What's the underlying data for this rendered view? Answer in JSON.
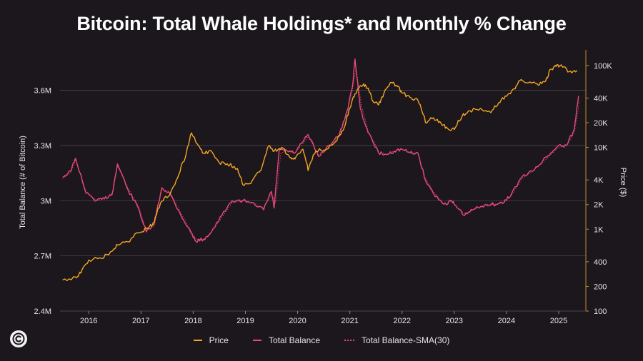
{
  "colors": {
    "background": "#1b171c",
    "price": "#f5a623",
    "balance": "#e8497a",
    "sma": "#e8497a",
    "grid": "#4a444b",
    "right_axis": "#c98a2a",
    "text": "#ffffff",
    "tick_text": "#e6e3e6"
  },
  "logo": {
    "icon": "coin-c-icon"
  },
  "chart_data": {
    "type": "line",
    "title": "Bitcoin: Total Whale Holdings* and Monthly % Change",
    "ylabel": "Total Balance (# of Bitcoin)",
    "y2label": "Price ($)",
    "xlabel": "",
    "xlim": [
      2015.45,
      2025.52
    ],
    "ylim": [
      2400000,
      3800000
    ],
    "y2lim": [
      100,
      140000
    ],
    "y2scale": "log",
    "x_ticks": [
      {
        "value": 2016,
        "label": "2016"
      },
      {
        "value": 2017,
        "label": "2017"
      },
      {
        "value": 2018,
        "label": "2018"
      },
      {
        "value": 2019,
        "label": "2019"
      },
      {
        "value": 2020,
        "label": "2020"
      },
      {
        "value": 2021,
        "label": "2021"
      },
      {
        "value": 2022,
        "label": "2022"
      },
      {
        "value": 2023,
        "label": "2023"
      },
      {
        "value": 2024,
        "label": "2024"
      },
      {
        "value": 2025,
        "label": "2025"
      }
    ],
    "y_ticks": [
      {
        "value": 2400000,
        "label": "2.4M"
      },
      {
        "value": 2700000,
        "label": "2.7M"
      },
      {
        "value": 3000000,
        "label": "3M"
      },
      {
        "value": 3300000,
        "label": "3.3M"
      },
      {
        "value": 3600000,
        "label": "3.6M"
      }
    ],
    "y2_ticks": [
      {
        "value": 100,
        "label": "100"
      },
      {
        "value": 200,
        "label": "200"
      },
      {
        "value": 400,
        "label": "400"
      },
      {
        "value": 1000,
        "label": "1K"
      },
      {
        "value": 2000,
        "label": "2K"
      },
      {
        "value": 4000,
        "label": "4K"
      },
      {
        "value": 10000,
        "label": "10K"
      },
      {
        "value": 20000,
        "label": "20K"
      },
      {
        "value": 40000,
        "label": "40K"
      },
      {
        "value": 100000,
        "label": "100K"
      }
    ],
    "legend": [
      {
        "name": "Price",
        "color": "#f5a623",
        "style": "solid"
      },
      {
        "name": "Total Balance",
        "color": "#e8497a",
        "style": "solid"
      },
      {
        "name": "Total Balance-SMA(30)",
        "color": "#e8497a",
        "style": "dotted"
      }
    ],
    "series": [
      {
        "name": "Price",
        "axis": "right",
        "x": [
          2015.5,
          2015.75,
          2015.85,
          2016.0,
          2016.25,
          2016.45,
          2016.55,
          2016.75,
          2016.95,
          2017.15,
          2017.25,
          2017.4,
          2017.55,
          2017.7,
          2017.85,
          2017.97,
          2018.08,
          2018.2,
          2018.35,
          2018.5,
          2018.65,
          2018.85,
          2018.95,
          2019.1,
          2019.3,
          2019.45,
          2019.55,
          2019.7,
          2019.85,
          2019.95,
          2020.1,
          2020.2,
          2020.35,
          2020.55,
          2020.75,
          2020.9,
          2021.0,
          2021.1,
          2021.2,
          2021.3,
          2021.45,
          2021.55,
          2021.65,
          2021.8,
          2021.9,
          2022.0,
          2022.15,
          2022.3,
          2022.45,
          2022.6,
          2022.75,
          2022.87,
          2023.0,
          2023.15,
          2023.3,
          2023.5,
          2023.7,
          2023.85,
          2024.0,
          2024.15,
          2024.25,
          2024.45,
          2024.6,
          2024.75,
          2024.85,
          2024.95,
          2025.05,
          2025.2,
          2025.35
        ],
        "values": [
          240,
          260,
          290,
          420,
          440,
          540,
          640,
          700,
          900,
          1050,
          1200,
          2200,
          2600,
          4200,
          7500,
          15000,
          11000,
          8500,
          9000,
          6500,
          6300,
          5500,
          3500,
          3600,
          5300,
          10500,
          9000,
          10000,
          7500,
          7200,
          9500,
          5200,
          9000,
          9500,
          12000,
          18000,
          30000,
          45000,
          57000,
          58000,
          36000,
          33000,
          45000,
          62000,
          57000,
          46000,
          41000,
          38000,
          20000,
          23000,
          19500,
          17000,
          16500,
          24000,
          28000,
          30000,
          26500,
          35000,
          42000,
          52000,
          65000,
          63000,
          58000,
          64000,
          90000,
          97000,
          102000,
          84000,
          87000
        ]
      },
      {
        "name": "Total Balance",
        "axis": "left",
        "x": [
          2015.5,
          2015.65,
          2015.75,
          2015.95,
          2016.15,
          2016.3,
          2016.45,
          2016.55,
          2016.75,
          2016.95,
          2017.1,
          2017.25,
          2017.4,
          2017.55,
          2017.75,
          2017.95,
          2018.05,
          2018.2,
          2018.35,
          2018.55,
          2018.75,
          2018.95,
          2019.15,
          2019.35,
          2019.5,
          2019.55,
          2019.65,
          2019.8,
          2019.95,
          2020.1,
          2020.2,
          2020.4,
          2020.6,
          2020.8,
          2020.95,
          2021.05,
          2021.1,
          2021.2,
          2021.35,
          2021.55,
          2021.7,
          2021.85,
          2022.0,
          2022.15,
          2022.3,
          2022.45,
          2022.6,
          2022.8,
          2022.95,
          2023.05,
          2023.2,
          2023.35,
          2023.6,
          2023.8,
          2023.95,
          2024.1,
          2024.3,
          2024.5,
          2024.7,
          2024.85,
          2025.0,
          2025.15,
          2025.3,
          2025.38
        ],
        "values": [
          3130000,
          3160000,
          3230000,
          3040000,
          3000000,
          3010000,
          3040000,
          3200000,
          3060000,
          2960000,
          2830000,
          2870000,
          3070000,
          3040000,
          2930000,
          2830000,
          2780000,
          2790000,
          2830000,
          2920000,
          3000000,
          3000000,
          2990000,
          2950000,
          3050000,
          2960000,
          3280000,
          3270000,
          3260000,
          3320000,
          3360000,
          3240000,
          3300000,
          3360000,
          3490000,
          3620000,
          3770000,
          3500000,
          3370000,
          3260000,
          3250000,
          3270000,
          3280000,
          3260000,
          3260000,
          3110000,
          3040000,
          2980000,
          3000000,
          2960000,
          2920000,
          2950000,
          2980000,
          2980000,
          2990000,
          3040000,
          3130000,
          3160000,
          3220000,
          3260000,
          3300000,
          3300000,
          3390000,
          3570000
        ]
      },
      {
        "name": "Total Balance-SMA(30)",
        "axis": "left",
        "x": [
          2015.5,
          2015.65,
          2015.75,
          2015.95,
          2016.15,
          2016.3,
          2016.45,
          2016.55,
          2016.75,
          2016.95,
          2017.1,
          2017.25,
          2017.4,
          2017.55,
          2017.75,
          2017.95,
          2018.05,
          2018.2,
          2018.35,
          2018.55,
          2018.75,
          2018.95,
          2019.15,
          2019.35,
          2019.5,
          2019.58,
          2019.68,
          2019.8,
          2019.95,
          2020.1,
          2020.2,
          2020.4,
          2020.6,
          2020.8,
          2020.95,
          2021.05,
          2021.12,
          2021.22,
          2021.35,
          2021.55,
          2021.7,
          2021.85,
          2022.0,
          2022.15,
          2022.3,
          2022.45,
          2022.6,
          2022.8,
          2022.95,
          2023.05,
          2023.2,
          2023.35,
          2023.6,
          2023.8,
          2023.95,
          2024.1,
          2024.3,
          2024.5,
          2024.7,
          2024.85,
          2025.0,
          2025.15,
          2025.3,
          2025.4
        ],
        "values": [
          3120000,
          3150000,
          3220000,
          3050000,
          3000000,
          3010000,
          3030000,
          3190000,
          3070000,
          2970000,
          2840000,
          2860000,
          3060000,
          3050000,
          2940000,
          2840000,
          2790000,
          2790000,
          2830000,
          2910000,
          2990000,
          3000000,
          2990000,
          2960000,
          3040000,
          2990000,
          3260000,
          3270000,
          3260000,
          3310000,
          3350000,
          3250000,
          3300000,
          3350000,
          3480000,
          3600000,
          3720000,
          3520000,
          3380000,
          3270000,
          3250000,
          3270000,
          3280000,
          3260000,
          3260000,
          3120000,
          3050000,
          2980000,
          3000000,
          2960000,
          2930000,
          2950000,
          2980000,
          2980000,
          2990000,
          3030000,
          3120000,
          3160000,
          3210000,
          3250000,
          3290000,
          3300000,
          3370000,
          3540000
        ]
      }
    ]
  }
}
